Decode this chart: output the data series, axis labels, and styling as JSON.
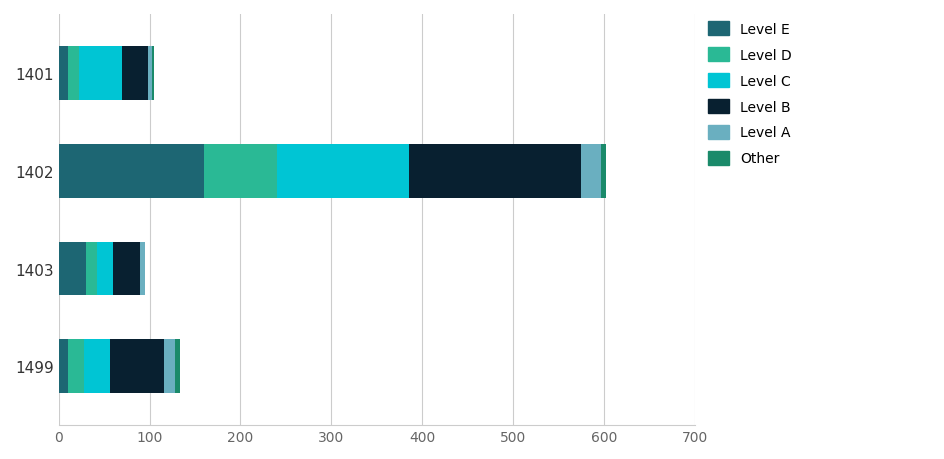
{
  "categories": [
    "1401",
    "1402",
    "1403",
    "1499"
  ],
  "series": {
    "Level E": [
      10,
      160,
      30,
      10
    ],
    "Level D": [
      12,
      80,
      12,
      18
    ],
    "Level C": [
      48,
      145,
      18,
      28
    ],
    "Level B": [
      28,
      190,
      30,
      60
    ],
    "Level A": [
      5,
      22,
      5,
      12
    ],
    "Other": [
      2,
      5,
      0,
      5
    ]
  },
  "colors": {
    "Level E": "#1d6673",
    "Level D": "#2ab995",
    "Level C": "#00c5d4",
    "Level B": "#082030",
    "Level A": "#6aafc0",
    "Other": "#1a8a6a"
  },
  "xlim": [
    0,
    700
  ],
  "xticks": [
    0,
    100,
    200,
    300,
    400,
    500,
    600,
    700
  ],
  "background_color": "#ffffff",
  "bar_height": 0.55,
  "legend_order": [
    "Level E",
    "Level D",
    "Level C",
    "Level B",
    "Level A",
    "Other"
  ]
}
